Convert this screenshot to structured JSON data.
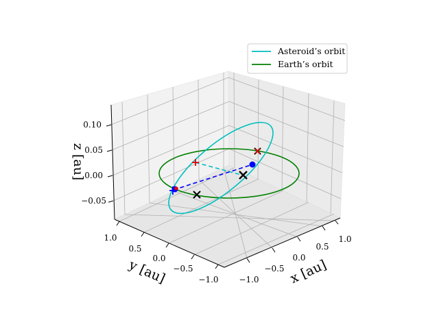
{
  "chart_data": {
    "type": "line",
    "projection": "3d",
    "title": "",
    "xlabel": "x [au]",
    "ylabel": "y [au]",
    "zlabel": "z [au]",
    "xlim": [
      -1.2,
      1.2
    ],
    "ylim": [
      -1.2,
      1.2
    ],
    "zlim": [
      -0.1,
      0.15
    ],
    "x_ticks": [
      "−1.0",
      "−0.5",
      "0.0",
      "0.5",
      "1.0"
    ],
    "y_ticks": [
      "−1.0",
      "−0.5",
      "0.0",
      "0.5",
      "1.0"
    ],
    "z_ticks": [
      "−0.05",
      "0.00",
      "0.05",
      "0.10"
    ],
    "grid": true,
    "legend_position": "top-right",
    "series": [
      {
        "name": "Asteroid’s orbit",
        "color": "#00bfbf"
      },
      {
        "name": "Earth’s orbit",
        "color": "#008000"
      }
    ],
    "markers": {
      "black_x": [
        {
          "x": 0.5,
          "y": -0.6,
          "z": 0.05
        },
        {
          "x": 0.0,
          "y": 0.1,
          "z": 0.0
        },
        {
          "x": -0.3,
          "y": 0.5,
          "z": -0.05
        }
      ],
      "red_plus": [
        {
          "x": -0.45,
          "y": 0.05,
          "z": 0.05
        },
        {
          "x": -0.3,
          "y": 0.85,
          "z": 0.0
        }
      ]
    }
  }
}
